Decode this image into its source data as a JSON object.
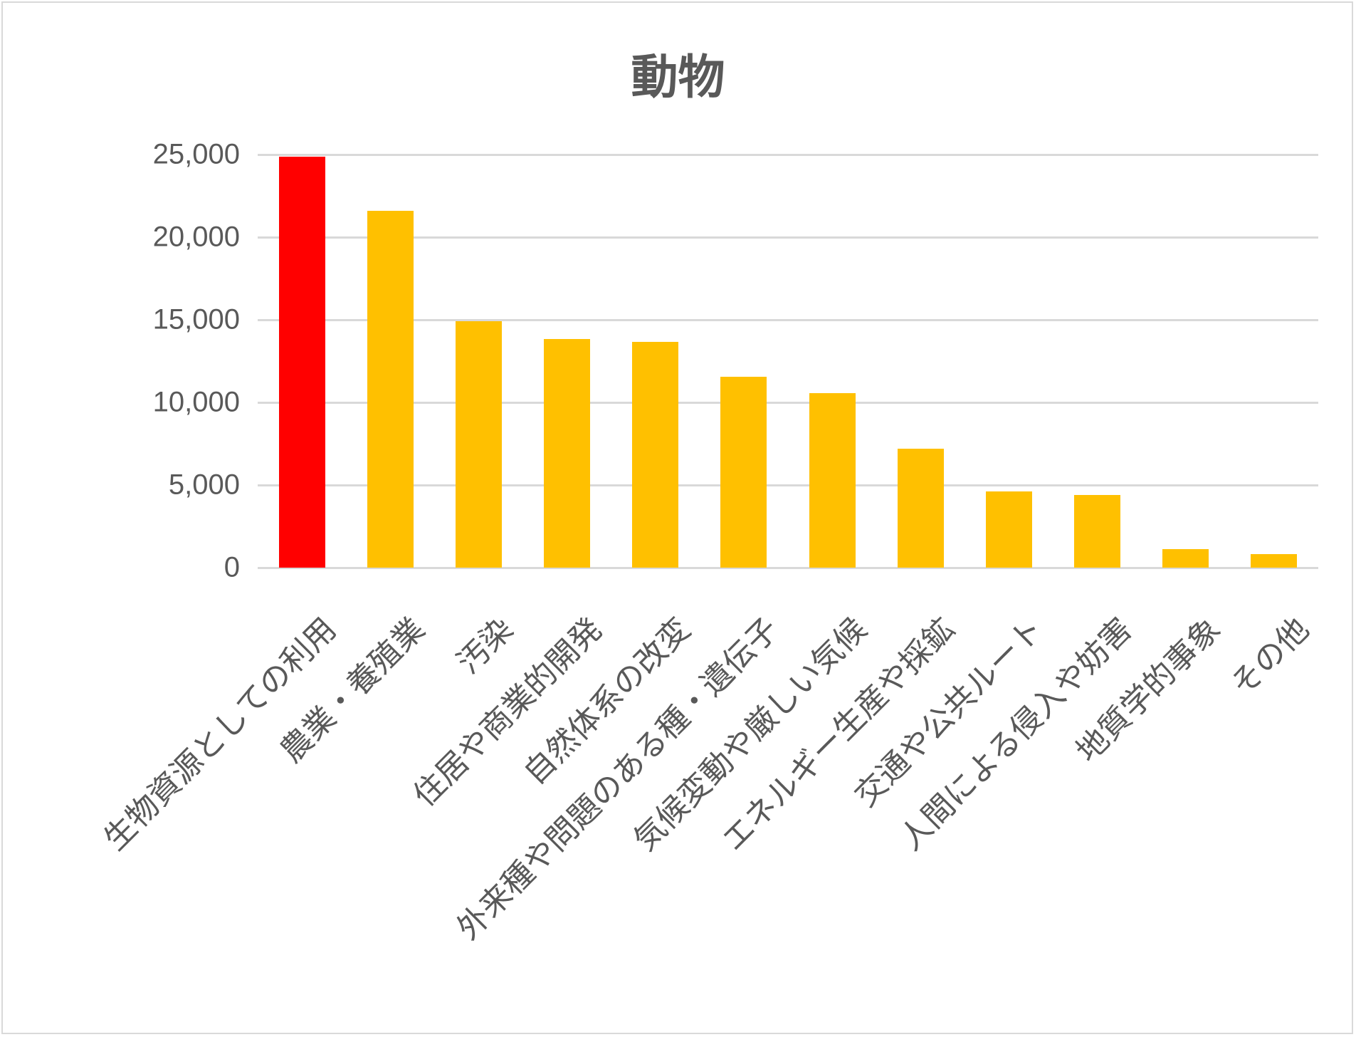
{
  "title": "動物",
  "colors": {
    "highlight": "#FF0000",
    "default": "#FFC000",
    "grid": "#D9D9D9",
    "text": "#595959"
  },
  "y_axis": {
    "ticks": [
      "25,000",
      "20,000",
      "15,000",
      "10,000",
      "5,000",
      "0"
    ]
  },
  "chart_data": {
    "type": "bar",
    "title": "動物",
    "xlabel": "",
    "ylabel": "",
    "ylim": [
      0,
      25000
    ],
    "grid": true,
    "legend": "none",
    "categories": [
      "生物資源としての利用",
      "農業・養殖業",
      "汚染",
      "住居や商業的開発",
      "自然体系の改変",
      "外来種や問題のある種・遺伝子",
      "気候変動や厳しい気候",
      "エネルギー生産や採鉱",
      "交通や公共ルート",
      "人間による侵入や妨害",
      "地質学的事象",
      "その他"
    ],
    "values": [
      24850,
      21600,
      14900,
      13850,
      13650,
      11550,
      10550,
      7200,
      4600,
      4400,
      1100,
      800
    ],
    "bar_colors": [
      "#FF0000",
      "#FFC000",
      "#FFC000",
      "#FFC000",
      "#FFC000",
      "#FFC000",
      "#FFC000",
      "#FFC000",
      "#FFC000",
      "#FFC000",
      "#FFC000",
      "#FFC000"
    ]
  }
}
